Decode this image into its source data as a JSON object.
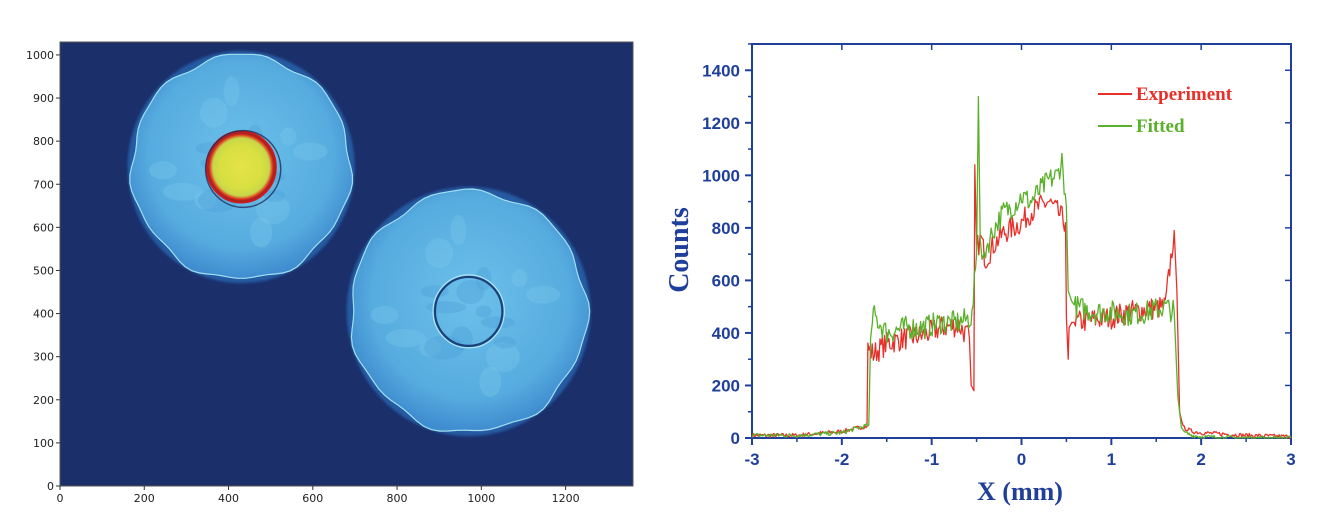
{
  "chart_data": [
    {
      "type": "heatmap",
      "x_ticks": [
        "0",
        "200",
        "400",
        "600",
        "800",
        "1000",
        "1200"
      ],
      "y_ticks": [
        "0",
        "100",
        "200",
        "300",
        "400",
        "500",
        "600",
        "700",
        "800",
        "900",
        "1000"
      ],
      "xlim": [
        0,
        1360
      ],
      "ylim": [
        0,
        1030
      ],
      "background_color": "#1b2f6b",
      "colormap": [
        "#1b2f6b",
        "#2f7fd0",
        "#5fb6e8",
        "#8fd0e0",
        "#f2e84a",
        "#e02a1a"
      ],
      "disks": [
        {
          "cx": 430,
          "cy": 740,
          "r": 260,
          "core_r": 82,
          "core": "hot"
        },
        {
          "cx": 970,
          "cy": 405,
          "r": 280,
          "core_r": 80,
          "core": "ring"
        }
      ]
    },
    {
      "type": "line",
      "xlabel": "X (mm)",
      "ylabel": "Counts",
      "xlim": [
        -3,
        3
      ],
      "ylim": [
        0,
        1500
      ],
      "x_ticks": [
        "-3",
        "-2",
        "-1",
        "0",
        "1",
        "2",
        "3"
      ],
      "y_ticks": [
        "0",
        "200",
        "400",
        "600",
        "800",
        "1000",
        "1200",
        "1400"
      ],
      "legend_position": "top-right",
      "axis_color": "#1f3f9a",
      "series": [
        {
          "name": "Experiment",
          "color": "#e8302a",
          "x": [
            -3.0,
            -2.5,
            -2.0,
            -1.8,
            -1.72,
            -1.71,
            -1.65,
            -1.5,
            -1.3,
            -1.1,
            -0.9,
            -0.7,
            -0.58,
            -0.56,
            -0.53,
            -0.52,
            -0.5,
            -0.45,
            -0.4,
            -0.3,
            -0.2,
            -0.1,
            0.0,
            0.1,
            0.2,
            0.3,
            0.4,
            0.49,
            0.5,
            0.52,
            0.53,
            0.56,
            0.6,
            0.8,
            1.0,
            1.2,
            1.4,
            1.6,
            1.7,
            1.73,
            1.76,
            1.8,
            1.9,
            2.0,
            2.5,
            3.0
          ],
          "y": [
            10,
            10,
            25,
            40,
            45,
            340,
            320,
            360,
            380,
            390,
            420,
            430,
            380,
            200,
            180,
            1040,
            720,
            760,
            680,
            740,
            780,
            800,
            820,
            860,
            880,
            900,
            860,
            820,
            460,
            300,
            420,
            440,
            440,
            450,
            460,
            480,
            490,
            500,
            790,
            560,
            100,
            40,
            25,
            20,
            10,
            5
          ]
        },
        {
          "name": "Fitted",
          "color": "#5ab02a",
          "x": [
            -3.0,
            -2.5,
            -2.0,
            -1.8,
            -1.7,
            -1.68,
            -1.65,
            -1.5,
            -1.3,
            -1.1,
            -0.9,
            -0.7,
            -0.55,
            -0.5,
            -0.48,
            -0.46,
            -0.44,
            -0.4,
            -0.3,
            -0.2,
            -0.1,
            0.0,
            0.1,
            0.2,
            0.3,
            0.4,
            0.45,
            0.5,
            0.52,
            0.56,
            0.6,
            0.8,
            1.0,
            1.2,
            1.4,
            1.6,
            1.7,
            1.74,
            1.78,
            1.82,
            1.9,
            2.0,
            2.5,
            3.0
          ],
          "y": [
            10,
            10,
            20,
            40,
            50,
            380,
            470,
            400,
            420,
            420,
            440,
            440,
            460,
            700,
            1300,
            760,
            680,
            720,
            800,
            860,
            880,
            920,
            900,
            940,
            980,
            1000,
            1060,
            880,
            560,
            520,
            500,
            480,
            480,
            470,
            480,
            500,
            480,
            160,
            40,
            20,
            10,
            5,
            0,
            0
          ]
        }
      ]
    }
  ]
}
